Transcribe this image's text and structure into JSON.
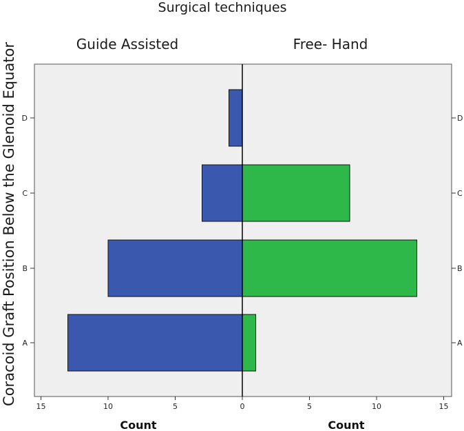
{
  "chart_data": {
    "type": "bar",
    "subtype": "population-pyramid",
    "title": "Surgical techniques",
    "ylabel": "Coracoid Graft Position Below the Glenoid Equator",
    "categories": [
      "A",
      "B",
      "C",
      "D"
    ],
    "series": [
      {
        "name": "Guide Assisted",
        "side": "left",
        "values": [
          13,
          10,
          3,
          1
        ],
        "color": "#3a58ad"
      },
      {
        "name": "Free- Hand",
        "side": "right",
        "values": [
          1,
          13,
          8,
          0
        ],
        "color": "#2fb84a"
      }
    ],
    "xlabel_left": "Count",
    "xlabel_right": "Count",
    "xlim": [
      0,
      15
    ],
    "xticks": [
      0,
      5,
      10,
      15
    ],
    "xtick_labels": [
      "0",
      "5",
      "10",
      "15"
    ],
    "background": "#efefef",
    "grid": false
  }
}
